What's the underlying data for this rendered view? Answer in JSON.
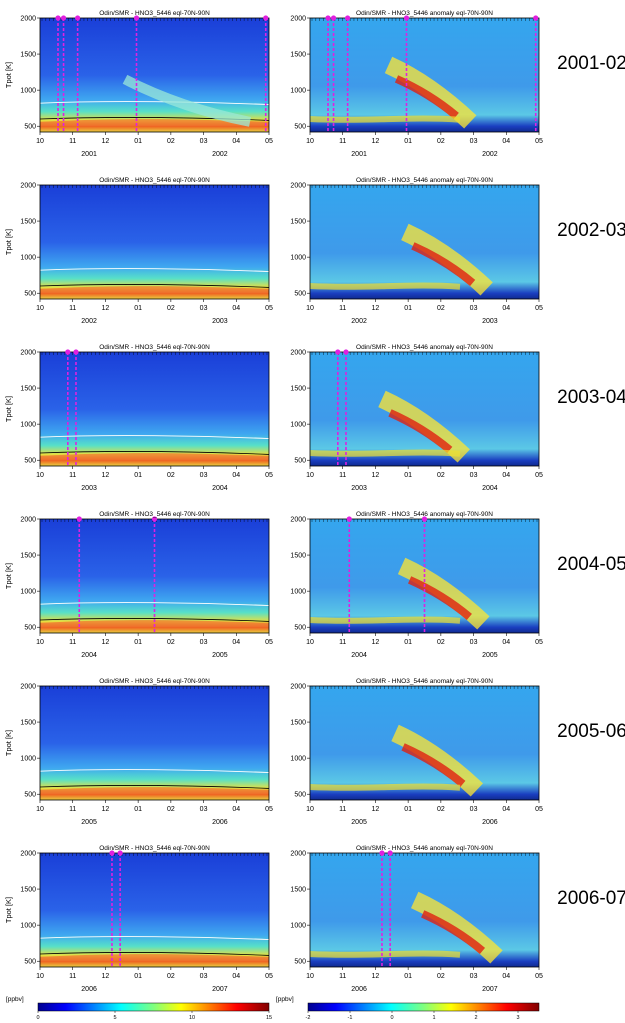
{
  "chart_data": {
    "type": "heatmap",
    "panel_titles": {
      "absolute": "Odin/SMR - HNO3_5446  eql-70N-90N",
      "anomaly": "Odin/SMR - HNO3_5446 anomaly  eql-70N-90N"
    },
    "ylabel": "Tpot [K]",
    "yticks": [
      500,
      1000,
      1500,
      2000
    ],
    "ylim": [
      420,
      2000
    ],
    "x_month_ticks": [
      "10",
      "11",
      "12",
      "01",
      "02",
      "03",
      "04",
      "05"
    ],
    "absolute_contour_levels": [
      5,
      10
    ],
    "anomaly_contour_levels": [
      -2,
      0,
      0.5,
      1,
      2
    ],
    "rows": [
      {
        "season": "2001-02",
        "year_left": "2001",
        "year_right": "2002",
        "marker_months": [
          0.55,
          0.72,
          1.15,
          2.95,
          6.9
        ]
      },
      {
        "season": "2002-03",
        "year_left": "2002",
        "year_right": "2003",
        "marker_months": []
      },
      {
        "season": "2003-04",
        "year_left": "2003",
        "year_right": "2004",
        "marker_months": [
          0.85,
          1.1
        ]
      },
      {
        "season": "2004-05",
        "year_left": "2004",
        "year_right": "2005",
        "marker_months": [
          1.2,
          3.5
        ]
      },
      {
        "season": "2005-06",
        "year_left": "2005",
        "year_right": "2006",
        "marker_months": []
      },
      {
        "season": "2006-07",
        "year_left": "2006",
        "year_right": "2007",
        "marker_months": [
          2.2,
          2.45
        ]
      }
    ],
    "colorbars": [
      {
        "unit": "[ppbv]",
        "ticks": [
          "0",
          "5",
          "10",
          "15"
        ],
        "range": [
          0,
          15
        ]
      },
      {
        "unit": "[ppbv]",
        "ticks": [
          "-2",
          "-1",
          "0",
          "1",
          "2",
          "3"
        ],
        "range": [
          -2,
          3.5
        ]
      }
    ]
  }
}
